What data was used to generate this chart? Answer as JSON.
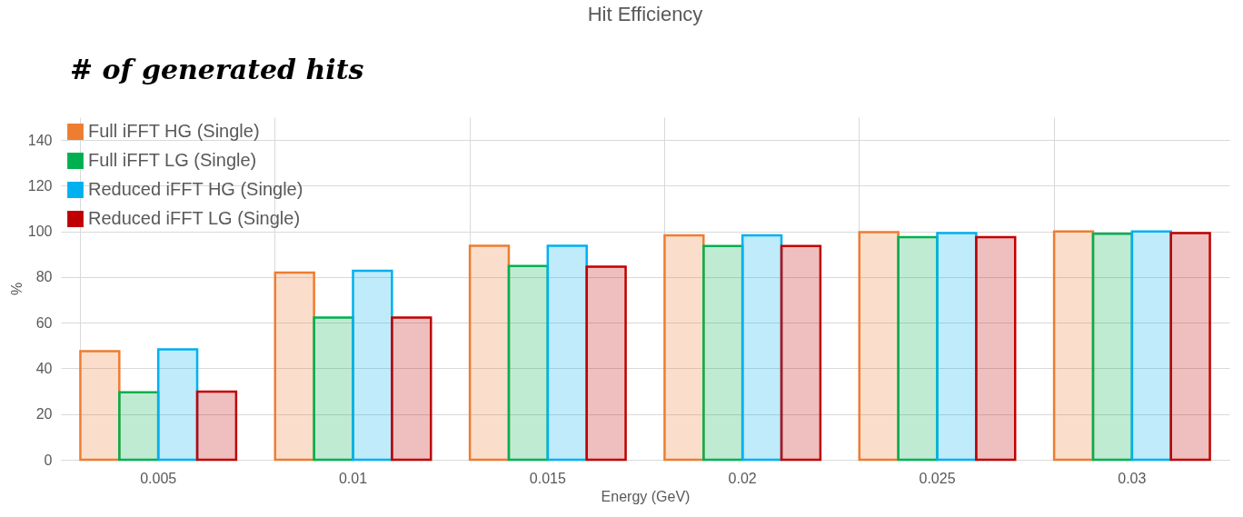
{
  "chart_data": {
    "type": "bar",
    "title": "Hit Efficiency",
    "xlabel": "Energy (GeV)",
    "ylabel": "%",
    "categories": [
      "0.005",
      "0.01",
      "0.015",
      "0.02",
      "0.025",
      "0.03"
    ],
    "series": [
      {
        "name": "Full iFFT HG (Single)",
        "color": "#ed7d31",
        "values": [
          47.5,
          82,
          93.7,
          98.3,
          99.7,
          100
        ]
      },
      {
        "name": "Full iFFT LG (Single)",
        "color": "#00b050",
        "values": [
          29.5,
          62.3,
          84.8,
          93.6,
          97.5,
          99
        ]
      },
      {
        "name": "Reduced iFFT HG (Single)",
        "color": "#00b0f0",
        "values": [
          48.3,
          82.8,
          93.7,
          98.3,
          99.3,
          100
        ]
      },
      {
        "name": "Reduced iFFT LG (Single)",
        "color": "#c00000",
        "values": [
          29.8,
          62.3,
          84.5,
          93.6,
          97.5,
          99.3
        ]
      }
    ],
    "ylim": [
      0,
      150
    ],
    "yticks": [
      0,
      20,
      40,
      60,
      80,
      100,
      120,
      140
    ],
    "grid": true,
    "legend": "top left",
    "annotations": [
      "# of generated hits"
    ]
  }
}
